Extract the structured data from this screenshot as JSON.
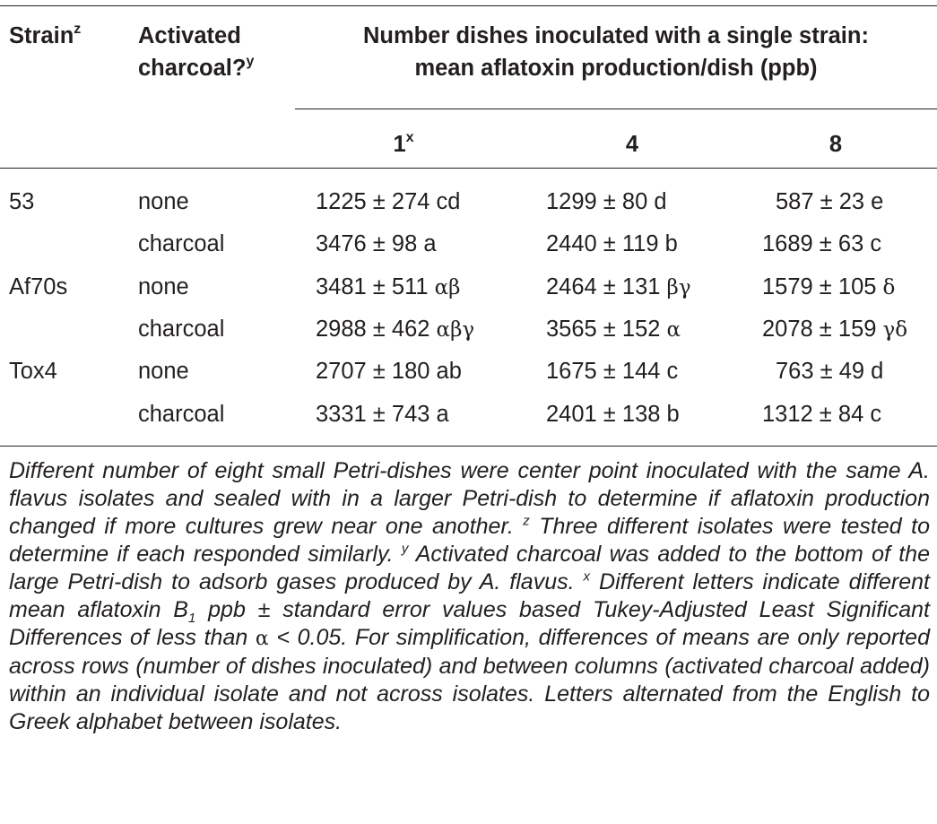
{
  "header": {
    "strain": "Strain",
    "strain_sup": "z",
    "activated_line1": "Activated",
    "activated_line2": "charcoal?",
    "activated_sup": "y",
    "number_line1": "Number dishes inoculated with a single strain:",
    "number_line2": "mean aflatoxin production/dish (ppb)",
    "col1": "1",
    "col1_sup": "x",
    "col4": "4",
    "col8": "8"
  },
  "rows": [
    {
      "strain": "53",
      "activated": "none",
      "v1": "1225 ± 274",
      "l1": "cd",
      "v4": "1299 ± 80",
      "l4": "d",
      "v8": "587 ± 23",
      "l8": "e"
    },
    {
      "strain": "",
      "activated": "charcoal",
      "v1": "3476 ± 98",
      "l1": "a",
      "v4": "2440 ± 119",
      "l4": "b",
      "v8": "1689 ± 63",
      "l8": "c"
    },
    {
      "strain": "Af70s",
      "activated": "none",
      "v1": "3481 ± 511",
      "l1": "αβ",
      "v4": "2464 ± 131",
      "l4": "βγ",
      "v8": "1579 ± 105",
      "l8": "δ"
    },
    {
      "strain": "",
      "activated": "charcoal",
      "v1": "2988 ± 462",
      "l1": "αβγ",
      "v4": "3565 ± 152",
      "l4": "α",
      "v8": "2078 ± 159",
      "l8": "γδ"
    },
    {
      "strain": "Tox4",
      "activated": "none",
      "v1": "2707 ± 180",
      "l1": "ab",
      "v4": "1675 ± 144",
      "l4": "c",
      "v8": "763 ± 49",
      "l8": "d"
    },
    {
      "strain": "",
      "activated": "charcoal",
      "v1": "3331 ± 743",
      "l1": "a",
      "v4": "2401 ± 138",
      "l4": "b",
      "v8": "1312 ± 84",
      "l8": "c"
    }
  ],
  "footnote": {
    "p1": "Different number of eight small Petri-dishes were center point inoculated with the same A. flavus isolates and sealed with in a larger Petri-dish to determine if aflatoxin production changed if more cultures grew near one another.",
    "z_mark": "z",
    "p2": "Three different isolates were tested to determine if each responded similarly.",
    "y_mark": "y",
    "p3": "Activated charcoal was added to the bottom of the large Petri-dish to adsorb gases produced by A. flavus.",
    "x_mark": "x",
    "p4a": "Different letters indicate different mean aflatoxin B",
    "p4_sub": "1",
    "p4b": "ppb ± standard error values based Tukey-Adjusted Least Significant Differences of less than",
    "alpha": "α",
    "p4c": "< 0.05. For simplification, differences of means are only reported across rows (number of dishes inoculated) and between columns (activated charcoal added) within an individual isolate and not across isolates. Letters alternated from the English to Greek alphabet between isolates."
  }
}
